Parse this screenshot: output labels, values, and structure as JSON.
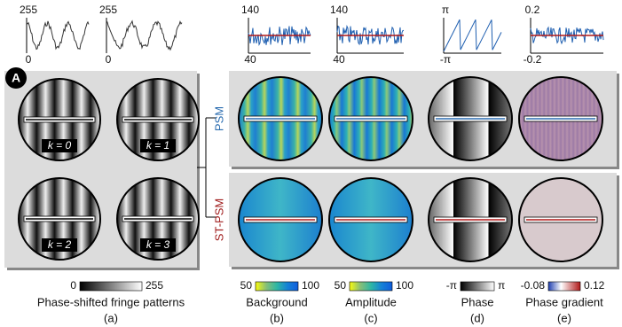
{
  "panel_label": "A",
  "fringe_profiles": [
    {
      "top": "255",
      "bottom": "0"
    },
    {
      "top": "255",
      "bottom": "0"
    }
  ],
  "fringe_labels": [
    "k = 0",
    "k = 1",
    "k = 2",
    "k = 3"
  ],
  "map_profiles": [
    {
      "top": "140",
      "bottom": "40"
    },
    {
      "top": "140",
      "bottom": "40"
    },
    {
      "top": "π",
      "bottom": "-π"
    },
    {
      "top": "0.2",
      "bottom": "-0.2"
    }
  ],
  "rows": [
    "PSM",
    "ST-PSM"
  ],
  "colorbars": [
    {
      "min": "0",
      "max": "255",
      "caption": "Phase-shifted fringe patterns",
      "letter": "(a)"
    },
    {
      "min": "50",
      "max": "100",
      "caption": "Background",
      "letter": "(b)"
    },
    {
      "min": "50",
      "max": "100",
      "caption": "Amplitude",
      "letter": "(c)"
    },
    {
      "min": "-π",
      "max": "π",
      "caption": "Phase",
      "letter": "(d)"
    },
    {
      "min": "-0.08",
      "max": "0.12",
      "caption": "Phase gradient",
      "letter": "(e)"
    }
  ]
}
